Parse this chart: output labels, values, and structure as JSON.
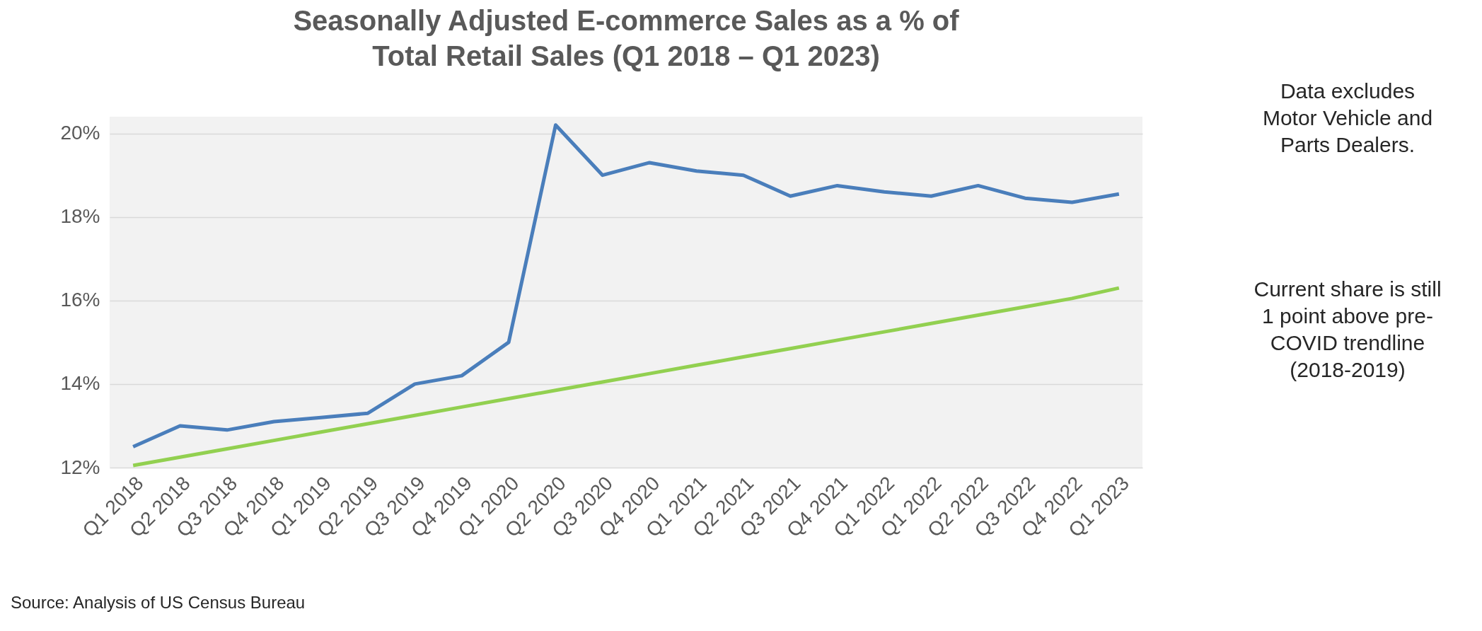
{
  "chart_data": {
    "type": "line",
    "title": "Seasonally Adjusted E-commerce Sales as a % of Total Retail Sales (Q1 2018 – Q1 2023)",
    "categories": [
      "Q1 2018",
      "Q2 2018",
      "Q3 2018",
      "Q4 2018",
      "Q1 2019",
      "Q2 2019",
      "Q3 2019",
      "Q4 2019",
      "Q1 2020",
      "Q2 2020",
      "Q3 2020",
      "Q4 2020",
      "Q1 2021",
      "Q2 2021",
      "Q3 2021",
      "Q4 2021",
      "Q1 2022",
      "Q1 2022",
      "Q2 2022",
      "Q3 2022",
      "Q4 2022",
      "Q1 2023"
    ],
    "series": [
      {
        "color": "#4a7ebb",
        "values": [
          12.5,
          13.0,
          12.9,
          13.1,
          13.2,
          13.3,
          14.0,
          14.2,
          15.0,
          20.2,
          19.0,
          19.3,
          19.1,
          19.0,
          18.5,
          18.75,
          18.6,
          18.5,
          18.75,
          18.45,
          18.35,
          18.55
        ]
      },
      {
        "type": "line",
        "color": "#92d050",
        "values": [
          12.05,
          12.25,
          12.45,
          12.65,
          12.85,
          13.05,
          13.25,
          13.45,
          13.65,
          13.85,
          14.05,
          14.25,
          14.45,
          14.65,
          14.85,
          15.05,
          15.25,
          15.45,
          15.65,
          15.85,
          16.05,
          16.3
        ]
      }
    ],
    "ylim": [
      12,
      20.4
    ],
    "yticks": [
      {
        "value": 12,
        "label": "12%"
      },
      {
        "value": 14,
        "label": "14%"
      },
      {
        "value": 16,
        "label": "16%"
      },
      {
        "value": 18,
        "label": "18%"
      },
      {
        "value": 20,
        "label": "20%"
      }
    ],
    "grid": "y",
    "marker": "none",
    "line_style": "solid",
    "annotations": [
      "Data excludes\nMotor Vehicle and\nParts Dealers.",
      "Current share is still\n1 point above pre-\nCOVID trendline\n(2018-2019)",
      "Source: Analysis of US Census Bureau"
    ]
  }
}
